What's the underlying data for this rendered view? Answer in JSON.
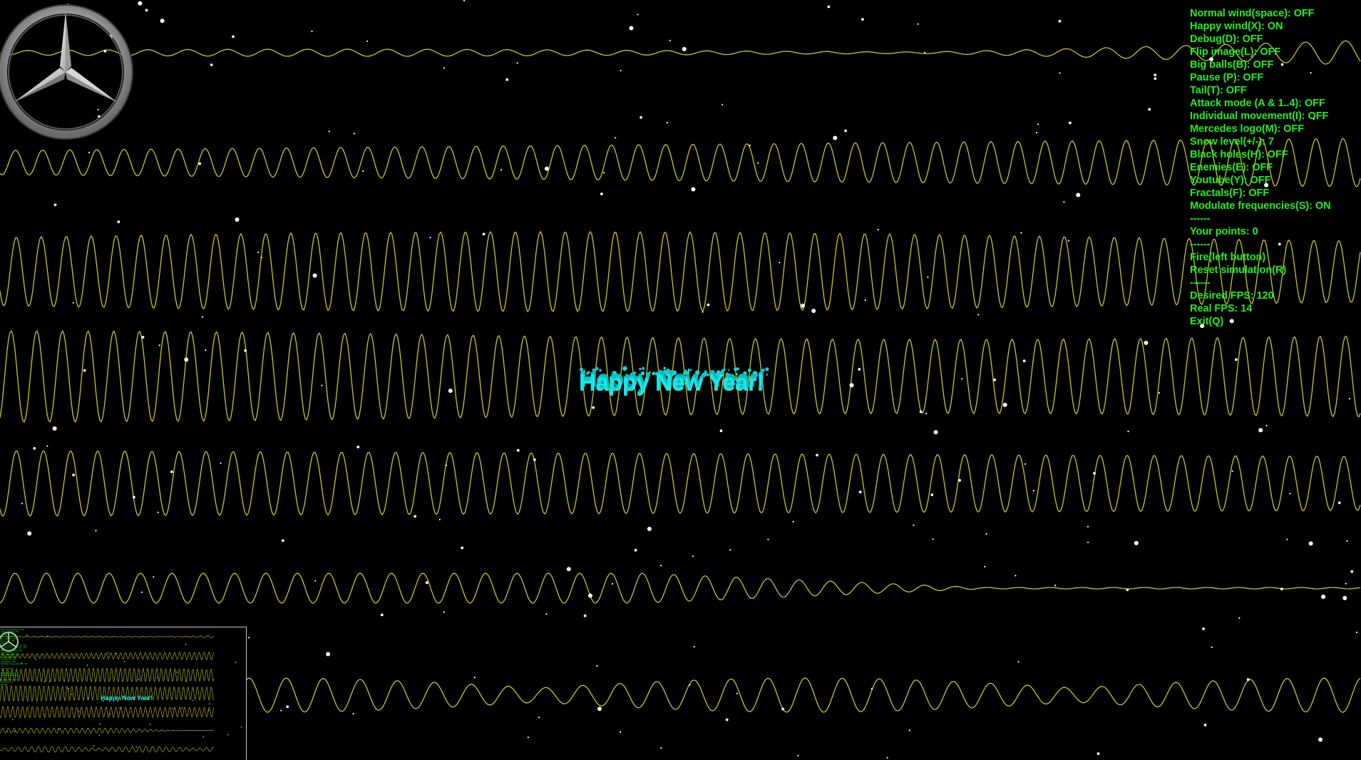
{
  "scene": {
    "background_color": "#000000",
    "wave_color": "#c8c81e",
    "menu_color": "#22ee22",
    "greeting_color": "#18e8e8",
    "snow_color": "#ffffff"
  },
  "greeting": {
    "text": "Happy New Year!"
  },
  "logo": {
    "icon": "mercedes-star-icon"
  },
  "menu": {
    "items": [
      "Normal wind(space): OFF",
      "Happy wind(X): ON",
      "Debug(D): OFF",
      "Flip image(L): OFF",
      "Big balls(B): OFF",
      "Pause (P): OFF",
      "Tail(T): OFF",
      "Attack mode (A & 1..4): OFF",
      "Individual movement(I): OFF",
      "Mercedes logo(M): OFF",
      "Snow level(+/-): 7",
      "Black holes(H): OFF",
      "Enemies(E): OFF",
      "Youtube(Y): OFF",
      "Fractals(F): OFF",
      "Modulate frequencies(S): ON",
      "------",
      "Your points: 0",
      "------",
      "Fire(left button)",
      "Reset simulation(R)",
      "------",
      "Desired FPS: 120",
      "Real FPS: 14",
      "Exit(Q)"
    ]
  },
  "minimap": {
    "greeting_text": "Happy New Year!"
  }
}
